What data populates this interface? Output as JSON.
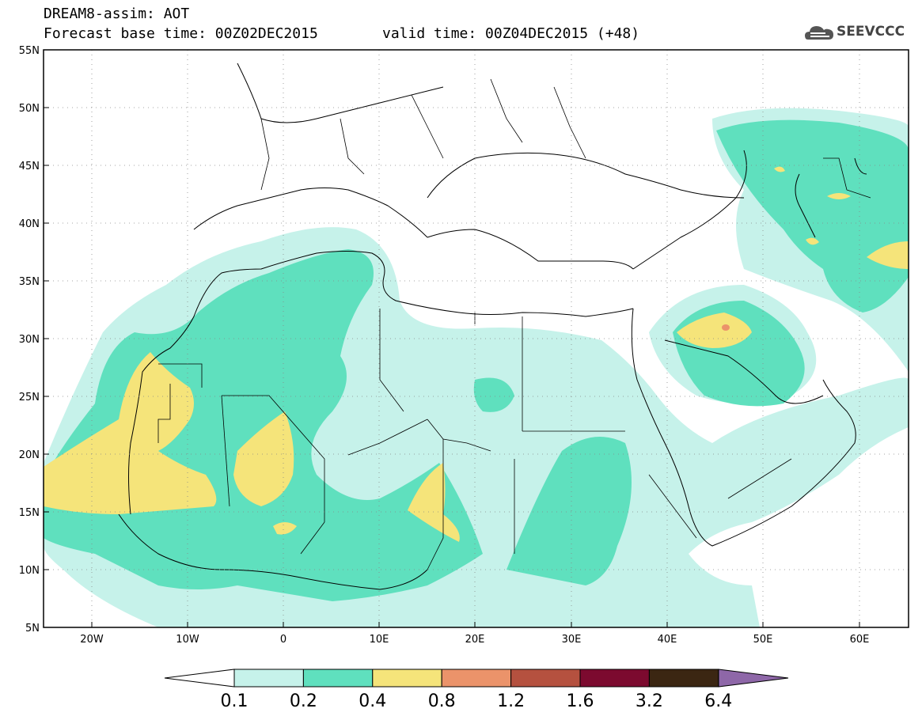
{
  "title": {
    "line1": "DREAM8-assim: AOT",
    "base_time": "Forecast base time: 00Z02DEC2015",
    "valid_time": "valid time: 00Z04DEC2015 (+48)"
  },
  "logo": {
    "text": "SEEVCCC",
    "icon": "cloud-icon"
  },
  "map": {
    "lon_range": [
      -25,
      65
    ],
    "lat_range": [
      5,
      55
    ],
    "grid": true,
    "lat_labels": [
      "55N",
      "50N",
      "45N",
      "40N",
      "35N",
      "30N",
      "25N",
      "20N",
      "15N",
      "10N",
      "5N"
    ],
    "lon_labels": [
      "20W",
      "10W",
      "0",
      "10E",
      "20E",
      "30E",
      "40E",
      "50E",
      "60E"
    ]
  },
  "legend": {
    "levels": [
      "0.1",
      "0.2",
      "0.4",
      "0.8",
      "1.2",
      "1.6",
      "3.2",
      "6.4"
    ],
    "colors": [
      "#c6f2ea",
      "#5fe0be",
      "#f5e47a",
      "#eb936a",
      "#b5513f",
      "#7c0a2f",
      "#3b2612",
      "#8e67a8"
    ]
  }
}
